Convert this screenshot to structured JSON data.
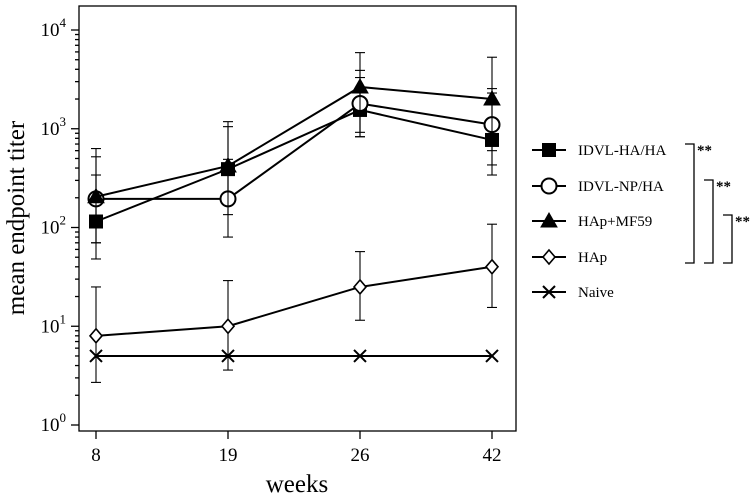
{
  "chart_data": {
    "type": "line",
    "title": "",
    "xlabel": "weeks",
    "ylabel": "mean endpoint titer",
    "yscale": "log",
    "ylim": [
      1,
      10000
    ],
    "y_ticks": [
      {
        "value": 1,
        "base": "10",
        "exp": "0"
      },
      {
        "value": 10,
        "base": "10",
        "exp": "1"
      },
      {
        "value": 100,
        "base": "10",
        "exp": "2"
      },
      {
        "value": 1000,
        "base": "10",
        "exp": "3"
      },
      {
        "value": 10000,
        "base": "10",
        "exp": "4"
      }
    ],
    "categories": [
      "8",
      "19",
      "26",
      "42"
    ],
    "legend_position": "right",
    "series": [
      {
        "name": "IDVL-HA/HA",
        "marker": "filled-square",
        "values": [
          115,
          390,
          1550,
          770
        ],
        "err_high": [
          520,
          1050,
          3300,
          2300
        ],
        "err_low": [
          48,
          170,
          830,
          340
        ]
      },
      {
        "name": "IDVL-NP/HA",
        "marker": "open-circle",
        "values": [
          195,
          195,
          1800,
          1100
        ],
        "err_high": [
          630,
          1180,
          3900,
          2550
        ],
        "err_low": [
          70,
          80,
          920,
          430
        ]
      },
      {
        "name": "HAp+MF59",
        "marker": "filled-triangle",
        "values": [
          205,
          420,
          2650,
          2000
        ],
        "err_high": [
          340,
          490,
          5900,
          5300
        ],
        "err_low": [
          70,
          135,
          830,
          600
        ]
      },
      {
        "name": "HAp",
        "marker": "open-diamond",
        "values": [
          8,
          10,
          25,
          40
        ],
        "err_high": [
          25,
          29,
          57,
          108
        ],
        "err_low": [
          2.7,
          3.6,
          11.5,
          15.5
        ]
      },
      {
        "name": "Naive",
        "marker": "cross",
        "values": [
          5,
          5,
          5,
          5
        ],
        "err_high": [
          null,
          null,
          null,
          null
        ],
        "err_low": [
          null,
          null,
          null,
          null
        ]
      }
    ],
    "significance": [
      {
        "from": "IDVL-HA/HA",
        "to": "HAp",
        "label": "**"
      },
      {
        "from": "IDVL-NP/HA",
        "to": "HAp",
        "label": "**"
      },
      {
        "from": "HAp+MF59",
        "to": "HAp",
        "label": "**"
      }
    ]
  }
}
